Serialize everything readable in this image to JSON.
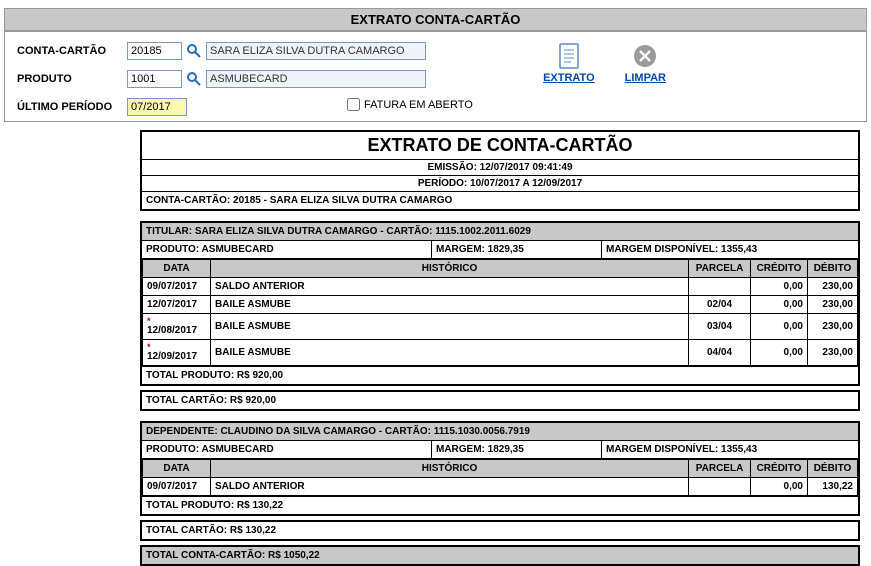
{
  "header": {
    "title": "EXTRATO CONTA-CARTÃO"
  },
  "form": {
    "conta_label": "CONTA-CARTÃO",
    "conta_value": "20185",
    "conta_display": "SARA ELIZA SILVA DUTRA CAMARGO",
    "produto_label": "PRODUTO",
    "produto_value": "1001",
    "produto_display": "ASMUBECARD",
    "periodo_label": "ÚLTIMO PERÍODO",
    "periodo_value": "07/2017",
    "fatura_label": "FATURA EM ABERTO"
  },
  "actions": {
    "extrato": "EXTRATO",
    "limpar": "LIMPAR"
  },
  "report": {
    "title": "EXTRATO DE CONTA-CARTÃO",
    "emissao": "EMISSÃO: 12/07/2017 09:41:49",
    "periodo": "PERÍODO: 10/07/2017 A 12/09/2017",
    "account": "CONTA-CARTÃO: 20185 - SARA ELIZA SILVA DUTRA CAMARGO",
    "cols": {
      "data": "DATA",
      "hist": "HISTÓRICO",
      "parc": "PARCELA",
      "cred": "CRÉDITO",
      "deb": "DÉBITO"
    },
    "titular": {
      "header": "TITULAR: SARA ELIZA SILVA DUTRA CAMARGO - CARTÃO: 1115.1002.2011.6029",
      "produto": "PRODUTO: ASMUBECARD",
      "margem": "MARGEM: 1829,35",
      "margem_disp": "MARGEM DISPONÍVEL: 1355,43",
      "rows": [
        {
          "data": "09/07/2017",
          "hist": "SALDO ANTERIOR",
          "parc": "",
          "cred": "0,00",
          "deb": "230,00",
          "star": false
        },
        {
          "data": "12/07/2017",
          "hist": "BAILE ASMUBE",
          "parc": "02/04",
          "cred": "0,00",
          "deb": "230,00",
          "star": false
        },
        {
          "data": "12/08/2017",
          "hist": "BAILE ASMUBE",
          "parc": "03/04",
          "cred": "0,00",
          "deb": "230,00",
          "star": true
        },
        {
          "data": "12/09/2017",
          "hist": "BAILE ASMUBE",
          "parc": "04/04",
          "cred": "0,00",
          "deb": "230,00",
          "star": true
        }
      ],
      "total_produto": "TOTAL PRODUTO: R$ 920,00",
      "total_cartao": "TOTAL CARTÃO: R$ 920,00"
    },
    "dependente": {
      "header": "DEPENDENTE: CLAUDINO DA SILVA CAMARGO - CARTÃO: 1115.1030.0056.7919",
      "produto": "PRODUTO: ASMUBECARD",
      "margem": "MARGEM: 1829,35",
      "margem_disp": "MARGEM DISPONÍVEL: 1355,43",
      "rows": [
        {
          "data": "09/07/2017",
          "hist": "SALDO ANTERIOR",
          "parc": "",
          "cred": "0,00",
          "deb": "130,22",
          "star": false
        }
      ],
      "total_produto": "TOTAL PRODUTO: R$ 130,22",
      "total_cartao": "TOTAL CARTÃO: R$ 130,22"
    },
    "total_conta": "TOTAL CONTA-CARTÃO: R$ 1050,22"
  }
}
